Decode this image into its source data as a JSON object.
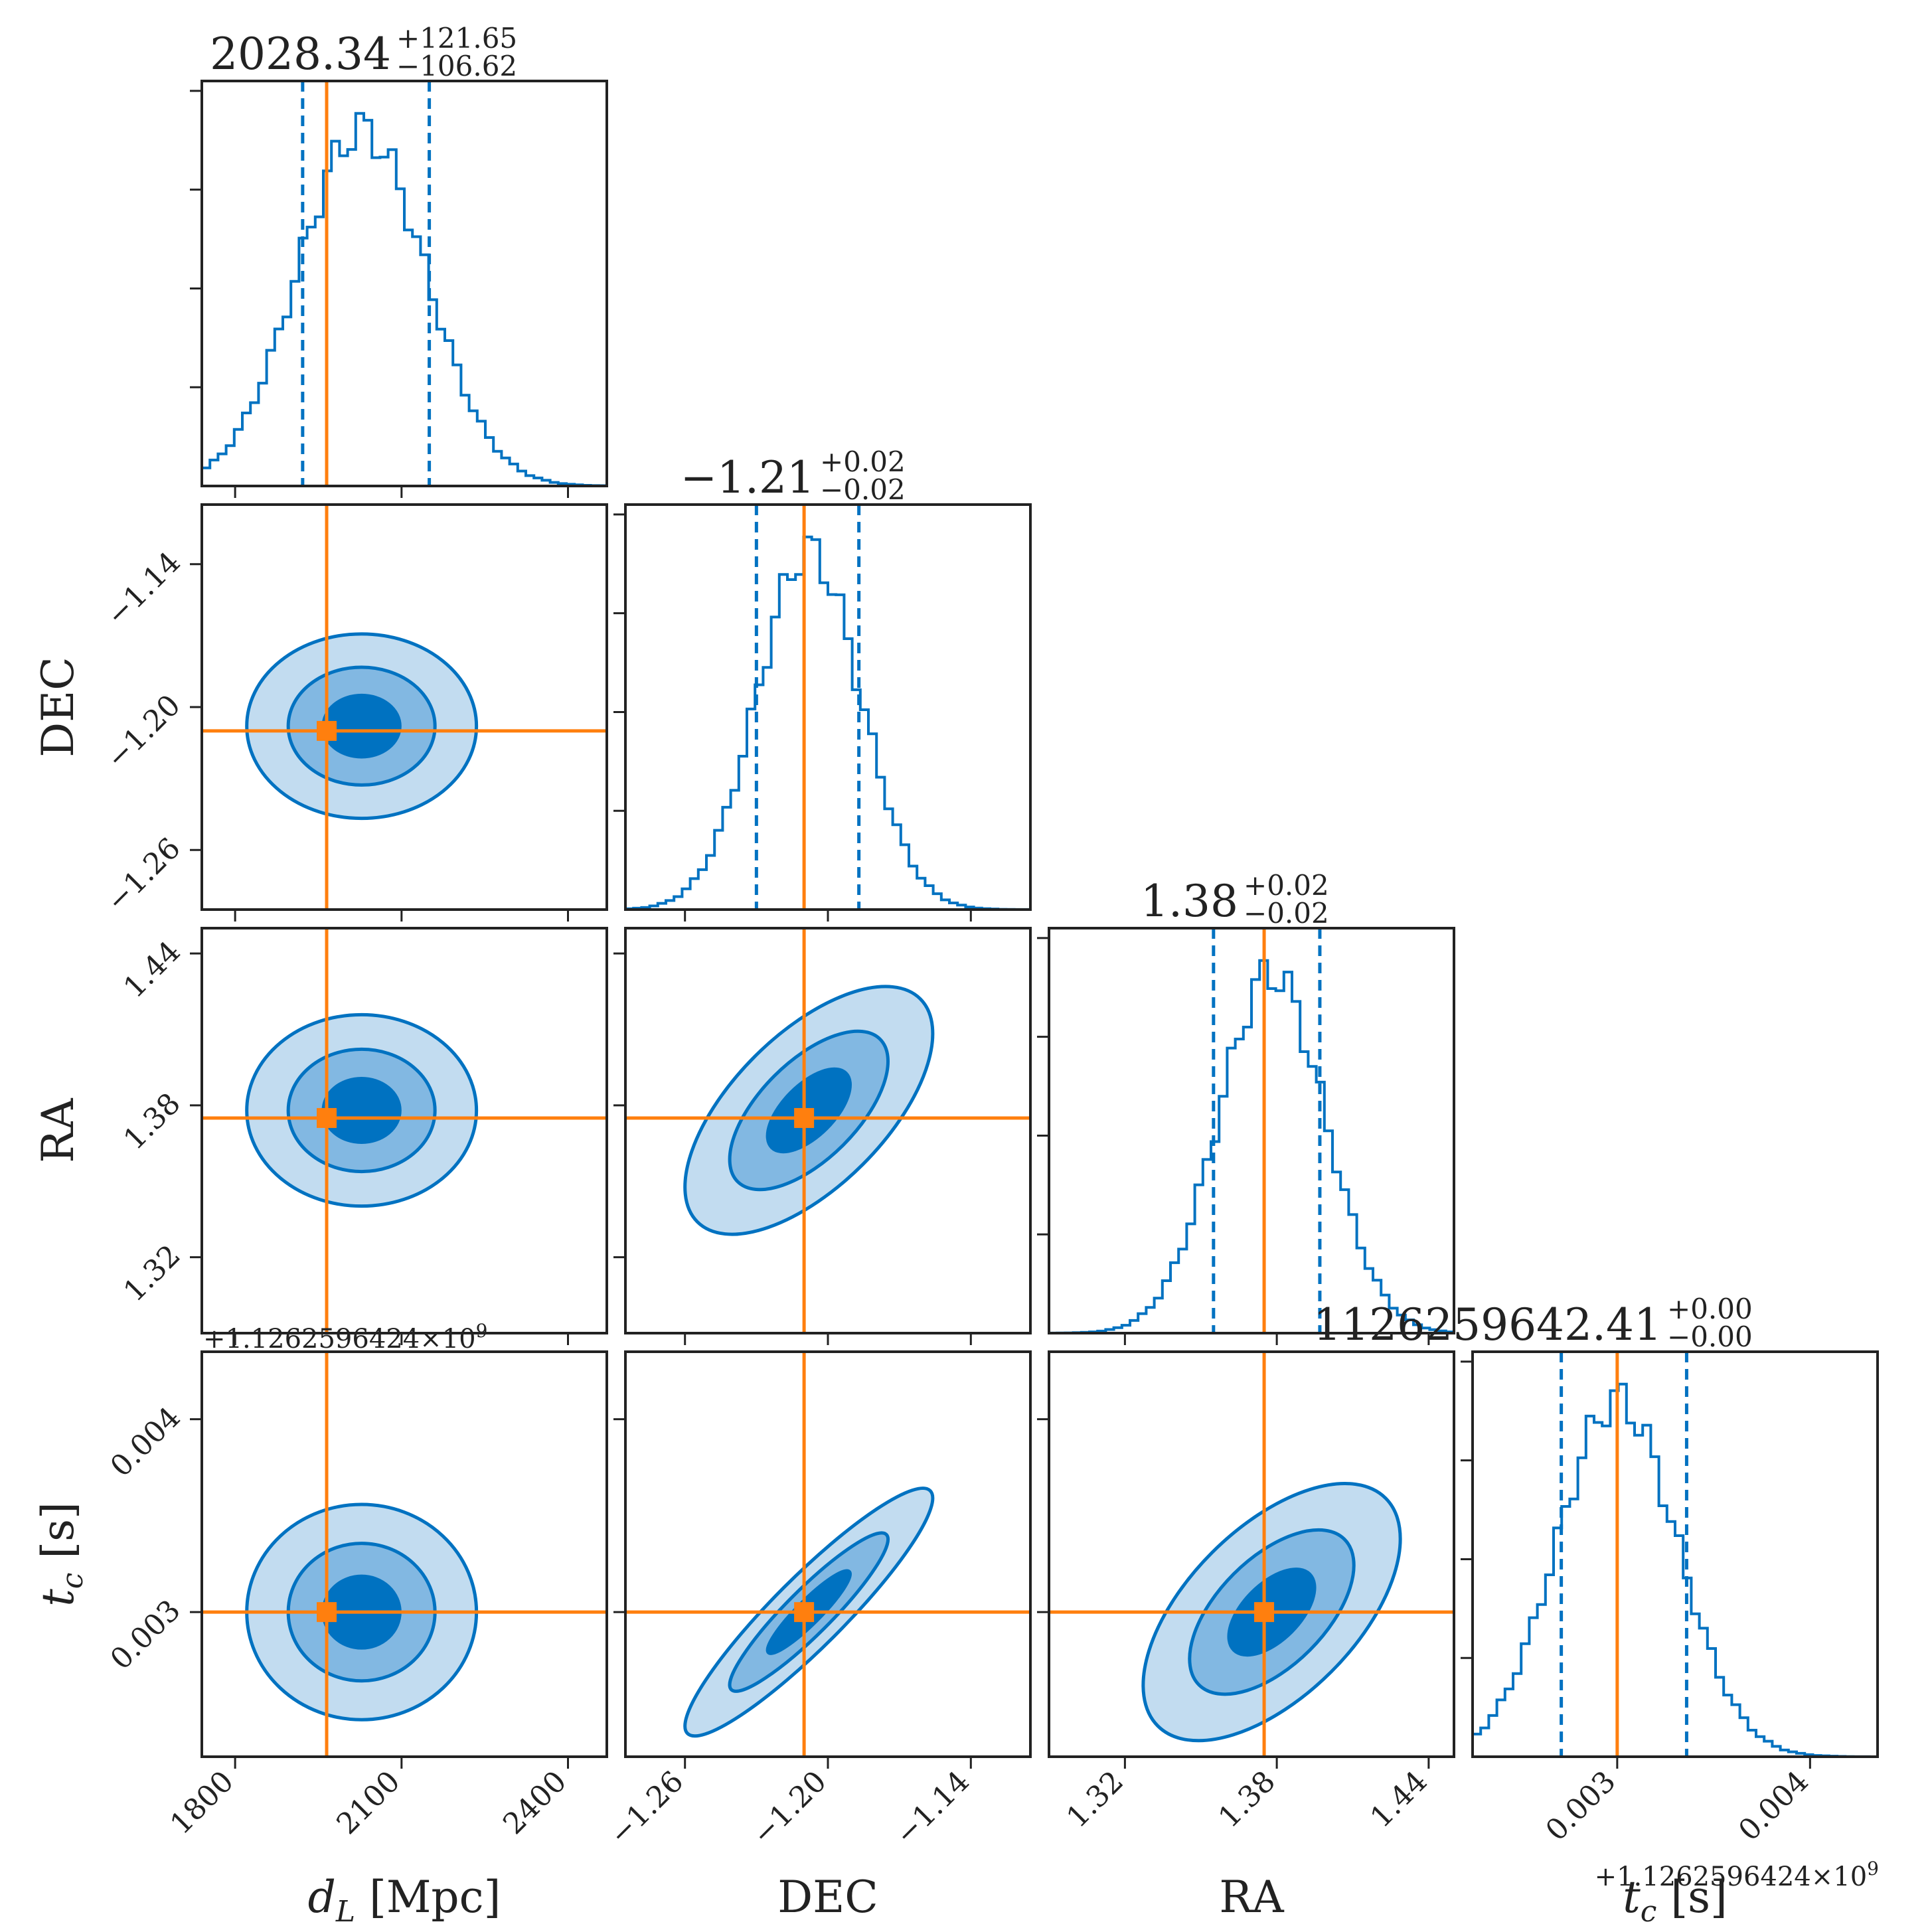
{
  "colors": {
    "posterior": "#0072c1",
    "truth": "#ff7f0e",
    "fill_levels": [
      "#c2dcf0",
      "#82b8e2",
      "#0072c1"
    ]
  },
  "chart_data": {
    "type": "corner",
    "parameters": [
      {
        "key": "dL",
        "label_main": "d",
        "label_sub": "L",
        "label_rest": " [Mpc]",
        "range": [
          1740,
          2470
        ],
        "ticks": [
          1800,
          2100,
          2400
        ],
        "tick_labels": [
          "1800",
          "2100",
          "2400"
        ],
        "truth": 1965,
        "median": 2028.34,
        "q_lo": 1921.72,
        "q_hi": 2149.99,
        "mode": 2028,
        "sigma": 115,
        "title_value": "2028.34",
        "title_plus": "+121.65",
        "title_minus": "−106.62"
      },
      {
        "key": "DEC",
        "label_main": "DEC",
        "label_sub": "",
        "label_rest": "",
        "range": [
          -1.285,
          -1.115
        ],
        "ticks": [
          -1.26,
          -1.2,
          -1.14
        ],
        "tick_labels": [
          "−1.26",
          "−1.20",
          "−1.14"
        ],
        "truth": -1.21,
        "median": -1.21,
        "q_lo": -1.23,
        "q_hi": -1.187,
        "mode": -1.208,
        "sigma": 0.0215,
        "title_value": "−1.21",
        "title_plus": "+0.02",
        "title_minus": "−0.02"
      },
      {
        "key": "RA",
        "label_main": "RA",
        "label_sub": "",
        "label_rest": "",
        "range": [
          1.29,
          1.45
        ],
        "ticks": [
          1.32,
          1.38,
          1.44
        ],
        "tick_labels": [
          "1.32",
          "1.38",
          "1.44"
        ],
        "truth": 1.375,
        "median": 1.38,
        "q_lo": 1.355,
        "q_hi": 1.397,
        "mode": 1.378,
        "sigma": 0.021,
        "title_value": "1.38",
        "title_plus": "+0.02",
        "title_minus": "−0.02"
      },
      {
        "key": "tc",
        "label_main": "t",
        "label_sub": "c",
        "label_rest": " [s]",
        "range": [
          0.00225,
          0.00435
        ],
        "ticks": [
          0.003,
          0.004
        ],
        "tick_labels": [
          "0.003",
          "0.004"
        ],
        "truth": 0.003,
        "median": 0.003,
        "q_lo": 0.00271,
        "q_hi": 0.00336,
        "mode": 0.003,
        "sigma": 0.00031,
        "title_value": "1126259642.41",
        "title_plus": "+0.00",
        "title_minus": "−0.00"
      }
    ],
    "offset_text": "+1.1262596424×10",
    "offset_exp": "9",
    "pairs": [
      {
        "row": 1,
        "col": 0,
        "corr": 0.0
      },
      {
        "row": 2,
        "col": 0,
        "corr": 0.0
      },
      {
        "row": 2,
        "col": 1,
        "corr": 0.62
      },
      {
        "row": 3,
        "col": 0,
        "corr": 0.0
      },
      {
        "row": 3,
        "col": 1,
        "corr": 0.92
      },
      {
        "row": 3,
        "col": 2,
        "corr": 0.57
      }
    ],
    "contour_levels_sigma": [
      0.6,
      1.15,
      1.8
    ]
  }
}
